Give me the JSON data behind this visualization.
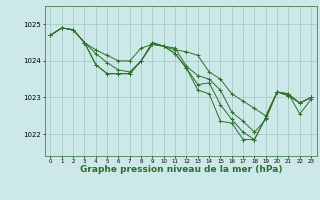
{
  "background_color": "#cde8e8",
  "plot_bg_color": "#cde8e8",
  "grid_color": "#a0c8c0",
  "line_color": "#2d6e2d",
  "xlabel": "Graphe pression niveau de la mer (hPa)",
  "xlabel_fontsize": 6.5,
  "yticks": [
    1022,
    1023,
    1024,
    1025
  ],
  "xtick_labels": [
    "0",
    "1",
    "2",
    "3",
    "4",
    "5",
    "6",
    "7",
    "8",
    "9",
    "10",
    "11",
    "12",
    "13",
    "14",
    "15",
    "16",
    "17",
    "18",
    "19",
    "20",
    "21",
    "22",
    "23"
  ],
  "ylim": [
    1021.4,
    1025.5
  ],
  "xlim": [
    -0.5,
    23.5
  ],
  "lines": [
    [
      1024.7,
      1024.9,
      1024.85,
      1024.5,
      1024.3,
      1024.15,
      1024.0,
      1024.0,
      1024.35,
      1024.45,
      1024.4,
      1024.3,
      1024.25,
      1024.15,
      1023.7,
      1023.5,
      1023.1,
      1022.9,
      1022.7,
      1022.5,
      1023.15,
      1023.05,
      1022.85,
      1023.0
    ],
    [
      1024.7,
      1024.9,
      1024.85,
      1024.5,
      1024.2,
      1023.95,
      1023.75,
      1023.7,
      1024.0,
      1024.45,
      1024.4,
      1024.35,
      1023.85,
      1023.6,
      1023.5,
      1023.2,
      1022.6,
      1022.35,
      1022.05,
      1022.4,
      1023.15,
      1023.05,
      1022.85,
      1023.0
    ],
    [
      1024.7,
      1024.9,
      1024.85,
      1024.5,
      1023.9,
      1023.65,
      1023.65,
      1023.65,
      1024.0,
      1024.5,
      1024.4,
      1024.2,
      1023.8,
      1023.35,
      1023.4,
      1022.8,
      1022.4,
      1022.05,
      1021.85,
      1022.45,
      1023.15,
      1023.1,
      1022.85,
      1023.0
    ],
    [
      1024.7,
      1024.9,
      1024.85,
      1024.5,
      1023.9,
      1023.65,
      1023.65,
      1023.65,
      1024.0,
      1024.5,
      1024.4,
      1024.2,
      1023.8,
      1023.2,
      1023.1,
      1022.35,
      1022.3,
      1021.85,
      1021.85,
      1022.45,
      1023.15,
      1023.1,
      1022.55,
      1022.95
    ]
  ]
}
